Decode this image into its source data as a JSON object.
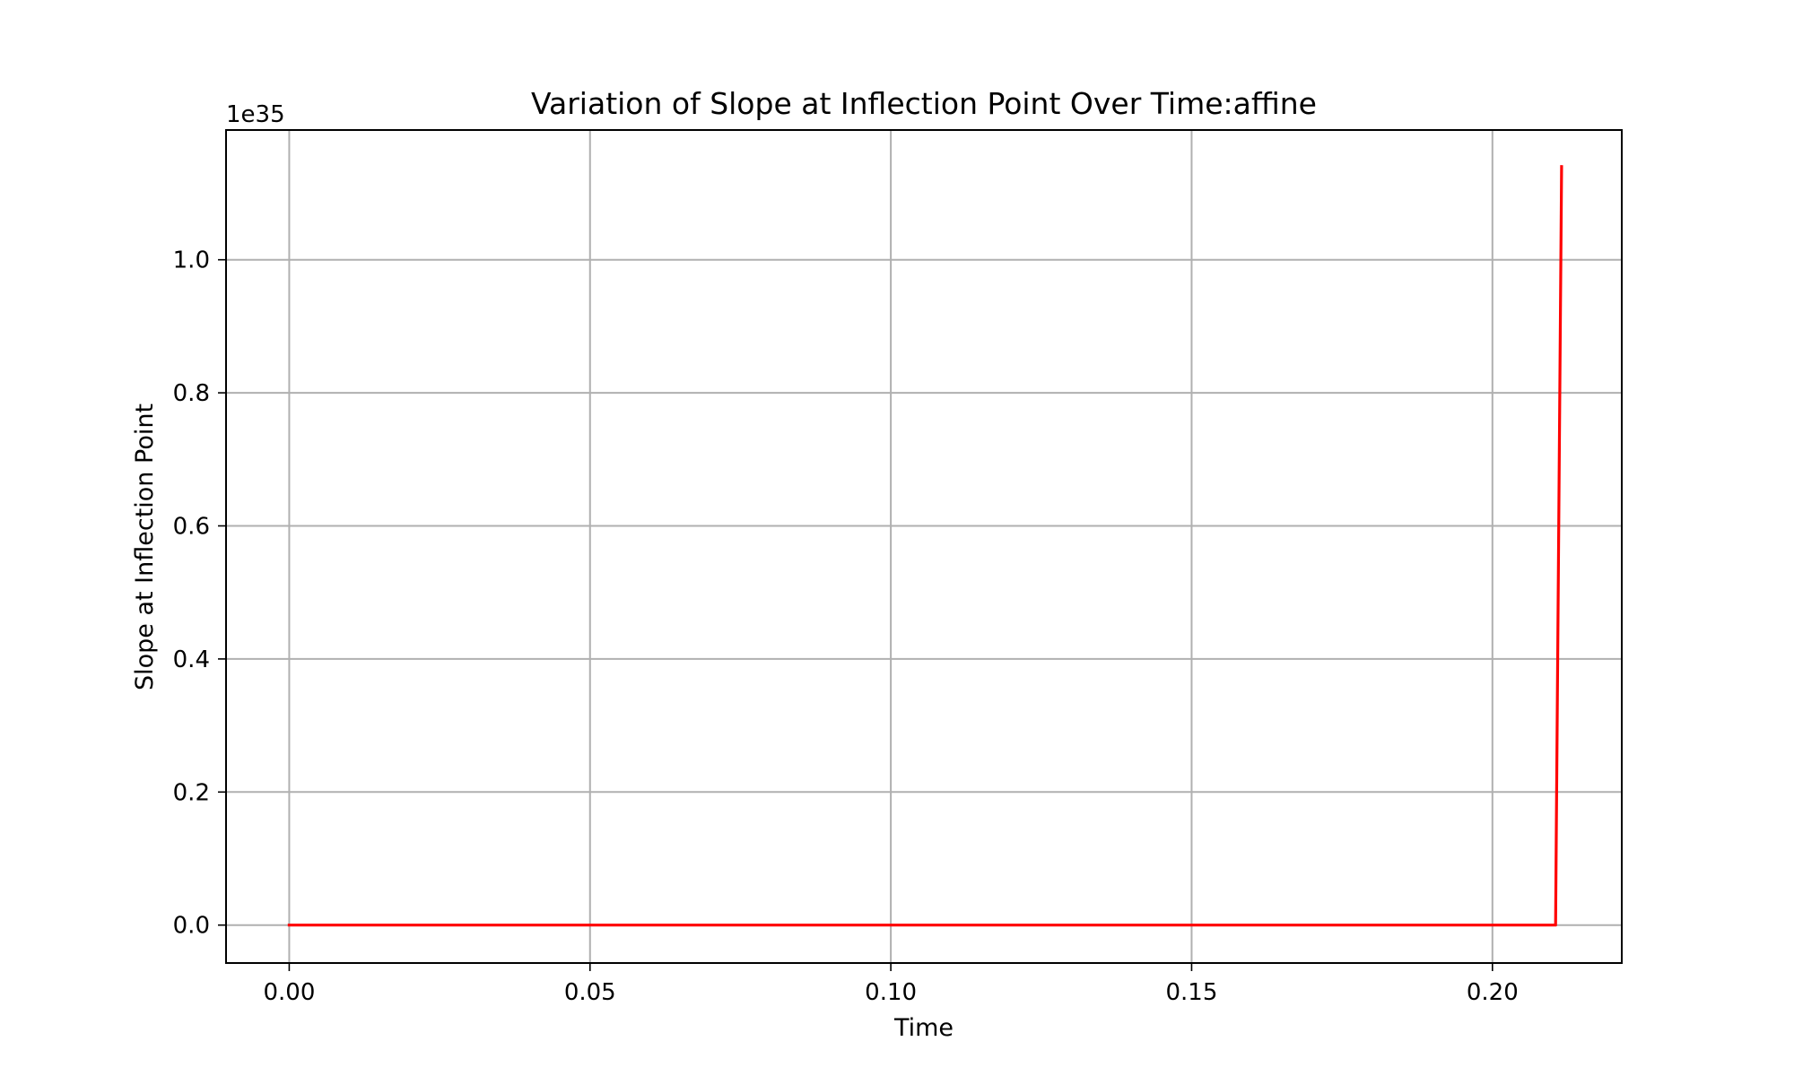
{
  "chart_data": {
    "type": "line",
    "title": "Variation of Slope at Inflection Point Over Time:affine",
    "xlabel": "Time",
    "ylabel": "Slope at Inflection Point",
    "y_offset_label": "1e35",
    "xlim": [
      -0.0105,
      0.2215
    ],
    "ylim": [
      -0.057,
      1.195
    ],
    "x_ticks": [
      0.0,
      0.05,
      0.1,
      0.15,
      0.2
    ],
    "x_tick_labels": [
      "0.00",
      "0.05",
      "0.10",
      "0.15",
      "0.20"
    ],
    "y_ticks": [
      0.0,
      0.2,
      0.4,
      0.6,
      0.8,
      1.0
    ],
    "y_tick_labels": [
      "0.0",
      "0.2",
      "0.4",
      "0.6",
      "0.8",
      "1.0"
    ],
    "grid": true,
    "series": [
      {
        "color": "#ff0000",
        "x": [
          0.0,
          0.05,
          0.1,
          0.15,
          0.2,
          0.2105,
          0.2115
        ],
        "y": [
          0.0,
          0.0,
          0.0,
          0.0,
          0.0,
          0.0,
          1.14
        ]
      }
    ]
  }
}
